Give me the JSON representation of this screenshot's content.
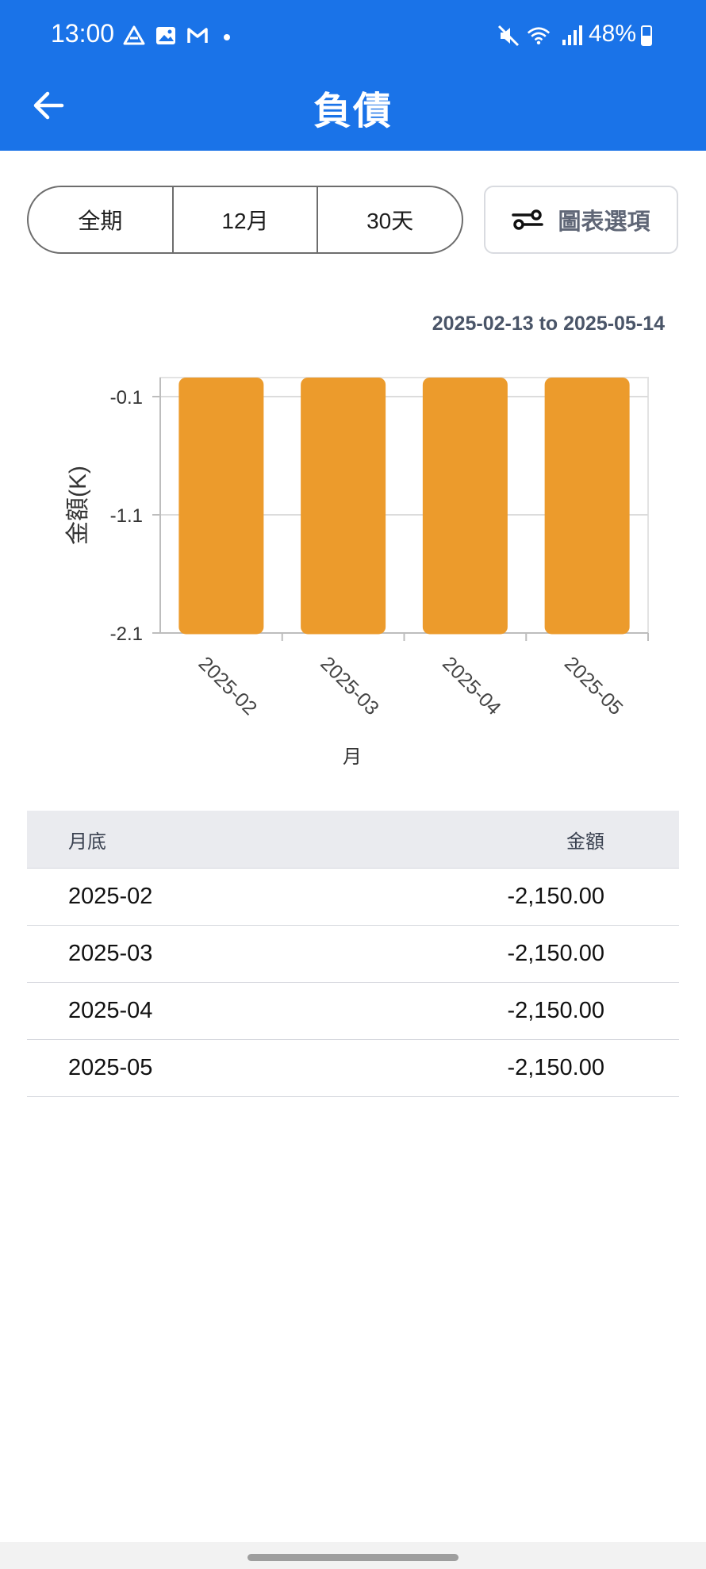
{
  "status_bar": {
    "time": "13:00",
    "battery": "48%",
    "icons": [
      "drive-icon",
      "gallery-icon",
      "gmail-icon",
      "mute-icon",
      "wifi-icon",
      "signal-icon",
      "battery-icon"
    ]
  },
  "header": {
    "title": "負債",
    "back_icon": "arrow-left-icon"
  },
  "period_selector": {
    "options": [
      "全期",
      "12月",
      "30天"
    ]
  },
  "chart_options_button": {
    "label": "圖表選項",
    "icon": "sliders-icon"
  },
  "date_range": "2025-02-13 to 2025-05-14",
  "chart_data": {
    "type": "bar",
    "categories": [
      "2025-02",
      "2025-03",
      "2025-04",
      "2025-05"
    ],
    "values": [
      -2.15,
      -2.15,
      -2.15,
      -2.15
    ],
    "ylabel": "金額(K)",
    "xlabel": "月",
    "yticks": [
      "-0.1",
      "-1.1",
      "-2.1"
    ],
    "bar_color": "#ec9b2c",
    "grid": true
  },
  "table": {
    "headers": [
      "月底",
      "金額"
    ],
    "rows": [
      [
        "2025-02",
        "-2,150.00"
      ],
      [
        "2025-03",
        "-2,150.00"
      ],
      [
        "2025-04",
        "-2,150.00"
      ],
      [
        "2025-05",
        "-2,150.00"
      ]
    ]
  },
  "colors": {
    "header_bg": "#1a73e8",
    "bar": "#ec9b2c"
  }
}
